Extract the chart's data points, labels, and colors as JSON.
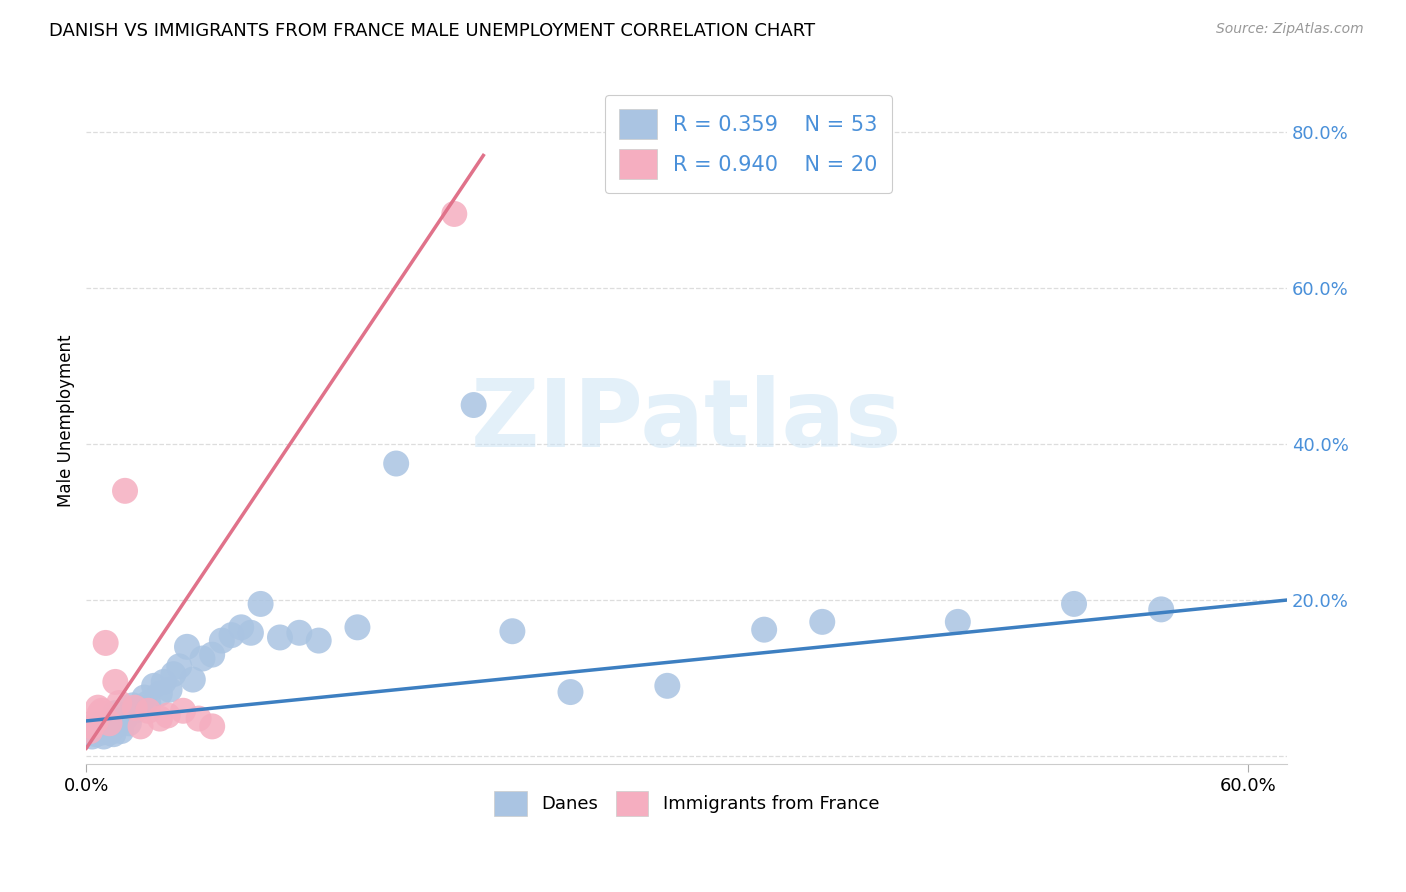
{
  "title": "DANISH VS IMMIGRANTS FROM FRANCE MALE UNEMPLOYMENT CORRELATION CHART",
  "source": "Source: ZipAtlas.com",
  "ylabel": "Male Unemployment",
  "xlim": [
    0.0,
    0.62
  ],
  "ylim": [
    -0.01,
    0.87
  ],
  "xticks": [
    0.0,
    0.6
  ],
  "xtick_labels": [
    "0.0%",
    "60.0%"
  ],
  "yticks": [
    0.0,
    0.2,
    0.4,
    0.6,
    0.8
  ],
  "ytick_labels": [
    "",
    "20.0%",
    "40.0%",
    "60.0%",
    "80.0%"
  ],
  "legend_r1": "R = 0.359",
  "legend_n1": "N = 53",
  "legend_r2": "R = 0.940",
  "legend_n2": "N = 20",
  "danes_color": "#aac4e2",
  "immigrants_color": "#f5aec0",
  "danes_line_color": "#3d7fc1",
  "immigrants_line_color": "#e0728a",
  "danes_scatter_x": [
    0.002,
    0.003,
    0.004,
    0.005,
    0.005,
    0.006,
    0.007,
    0.008,
    0.009,
    0.01,
    0.011,
    0.012,
    0.013,
    0.014,
    0.015,
    0.016,
    0.018,
    0.02,
    0.022,
    0.024,
    0.025,
    0.027,
    0.03,
    0.032,
    0.035,
    0.038,
    0.04,
    0.043,
    0.045,
    0.048,
    0.052,
    0.055,
    0.06,
    0.065,
    0.07,
    0.075,
    0.08,
    0.085,
    0.09,
    0.1,
    0.11,
    0.12,
    0.14,
    0.16,
    0.2,
    0.22,
    0.25,
    0.3,
    0.35,
    0.38,
    0.45,
    0.51,
    0.555
  ],
  "danes_scatter_y": [
    0.03,
    0.025,
    0.035,
    0.028,
    0.04,
    0.032,
    0.038,
    0.03,
    0.025,
    0.042,
    0.035,
    0.03,
    0.038,
    0.028,
    0.055,
    0.04,
    0.032,
    0.048,
    0.042,
    0.065,
    0.058,
    0.062,
    0.075,
    0.068,
    0.09,
    0.08,
    0.095,
    0.085,
    0.105,
    0.115,
    0.14,
    0.098,
    0.125,
    0.13,
    0.148,
    0.155,
    0.165,
    0.158,
    0.195,
    0.152,
    0.158,
    0.148,
    0.165,
    0.375,
    0.45,
    0.16,
    0.082,
    0.09,
    0.162,
    0.172,
    0.172,
    0.195,
    0.188
  ],
  "immigrants_scatter_x": [
    0.002,
    0.003,
    0.005,
    0.006,
    0.007,
    0.008,
    0.01,
    0.012,
    0.015,
    0.017,
    0.02,
    0.025,
    0.028,
    0.032,
    0.038,
    0.042,
    0.05,
    0.058,
    0.065,
    0.19
  ],
  "immigrants_scatter_y": [
    0.032,
    0.038,
    0.045,
    0.062,
    0.055,
    0.058,
    0.145,
    0.042,
    0.095,
    0.068,
    0.34,
    0.062,
    0.038,
    0.058,
    0.048,
    0.052,
    0.058,
    0.048,
    0.038,
    0.695
  ],
  "danes_trend_x": [
    0.0,
    0.62
  ],
  "danes_trend_y": [
    0.045,
    0.2
  ],
  "immigrants_trend_x": [
    0.0,
    0.205
  ],
  "immigrants_trend_y": [
    0.01,
    0.77
  ],
  "watermark_text": "ZIPatlas",
  "background_color": "#ffffff",
  "grid_color": "#dddddd"
}
